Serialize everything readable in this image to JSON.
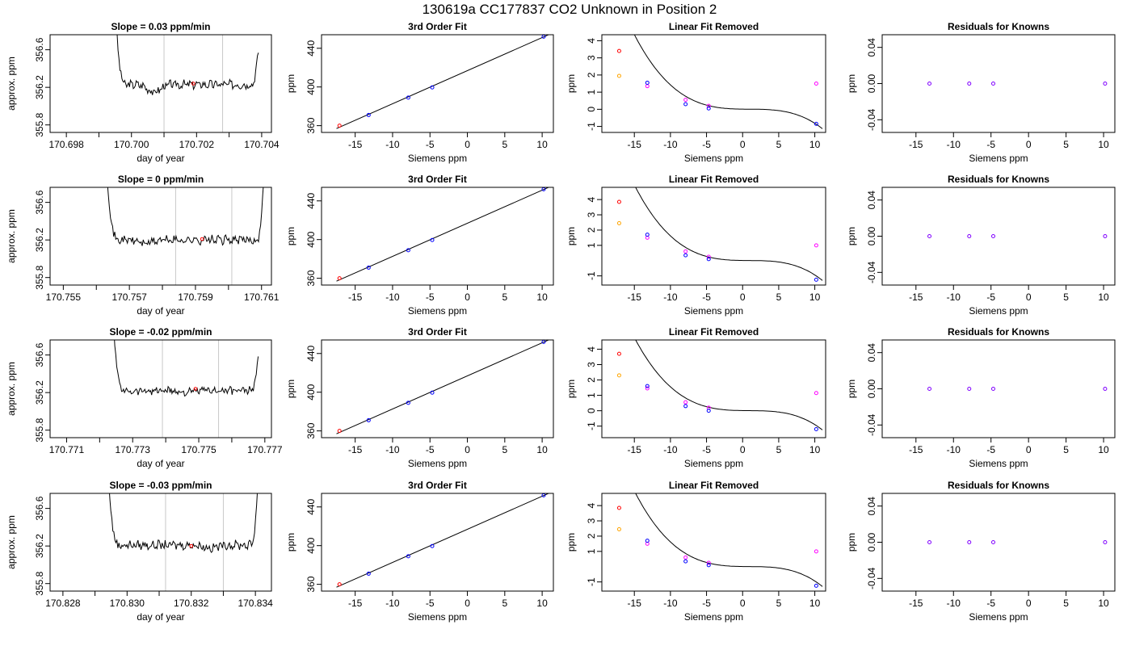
{
  "figure": {
    "title": "130619a     CC177837    CO2 Unknown in Position  2",
    "colors": {
      "trace": "#000000",
      "marker_line": "#c8c8c8",
      "unknown": "#ff0000",
      "standard": "#0000ff",
      "residual": "#ff00ff",
      "linear_unknown": "#ffa500",
      "residual_known": "#8000ff"
    }
  },
  "chart_data": [
    {
      "type": "line",
      "row": 0,
      "col": 0,
      "title": "Slope =  0.03  ppm/min",
      "xlabel": "day of year",
      "ylabel": "approx. ppm",
      "xlim": [
        170.6975,
        170.7043
      ],
      "ylim": [
        355.72,
        356.76
      ],
      "xticks": [
        170.698,
        170.7,
        170.702,
        170.704
      ],
      "xtick_labels": [
        "170.698",
        "170.700",
        "170.702",
        "170.704"
      ],
      "xminor": [
        170.699,
        170.701,
        170.703
      ],
      "yticks": [
        355.8,
        356.2,
        356.6
      ],
      "ytick_labels": [
        "355.8",
        "356.2",
        "356.6"
      ],
      "vlines": [
        170.701,
        170.7028
      ],
      "trace": {
        "x0": 170.6995,
        "x1": 170.7039,
        "noise": 0.04,
        "start": 357.0,
        "end": 356.58,
        "base": 356.23,
        "dip": {
          "at": 170.7007,
          "depth": -0.08
        }
      },
      "unknown_point": [
        170.7019,
        356.24
      ]
    },
    {
      "type": "scatter",
      "row": 0,
      "col": 1,
      "title": "3rd Order Fit",
      "xlabel": "Siemens ppm",
      "ylabel": "ppm",
      "xlim": [
        -19.5,
        11.5
      ],
      "ylim": [
        353,
        454
      ],
      "xticks": [
        -15,
        -10,
        -5,
        0,
        5,
        10
      ],
      "xtick_labels": [
        "-15",
        "-10",
        "-5",
        "0",
        "5",
        "10"
      ],
      "yticks": [
        360,
        400,
        440
      ],
      "ytick_labels": [
        "360",
        "400",
        "440"
      ],
      "standards": [
        [
          -13.2,
          371
        ],
        [
          -7.9,
          389
        ],
        [
          -4.7,
          399.5
        ],
        [
          10.2,
          452
        ]
      ],
      "unknown": [
        -17.1,
        360
      ],
      "fit_range": [
        -17.5,
        11
      ]
    },
    {
      "type": "scatter",
      "row": 0,
      "col": 2,
      "title": "Linear Fit Removed",
      "xlabel": "Siemens ppm",
      "ylabel": "ppm",
      "xlim": [
        -19.5,
        11.5
      ],
      "ylim": [
        -1.35,
        4.35
      ],
      "xticks": [
        -15,
        -10,
        -5,
        0,
        5,
        10
      ],
      "xtick_labels": [
        "-15",
        "-10",
        "-5",
        "0",
        "5",
        "10"
      ],
      "yticks": [
        -1,
        0,
        1,
        2,
        3,
        4
      ],
      "ytick_labels": [
        "-1",
        "0",
        "1",
        "2",
        "3",
        "4"
      ],
      "standards": [
        [
          -13.2,
          1.55
        ],
        [
          -7.9,
          0.3
        ],
        [
          -4.7,
          0.05
        ],
        [
          10.2,
          -0.85
        ]
      ],
      "residuals": [
        [
          -13.2,
          1.35
        ],
        [
          -7.9,
          0.55
        ],
        [
          -4.7,
          0.2
        ],
        [
          10.2,
          1.5
        ]
      ],
      "unknown": [
        -17.1,
        3.4
      ],
      "linear_unknown": [
        -17.1,
        1.95
      ],
      "curve": {
        "a": -0.00107,
        "b": 0.00294,
        "c": -0.0051,
        "d": 0.01
      }
    },
    {
      "type": "scatter",
      "row": 0,
      "col": 3,
      "title": "Residuals for Knowns",
      "xlabel": "Siemens ppm",
      "ylabel": "ppm",
      "xlim": [
        -19.5,
        11.5
      ],
      "ylim": [
        -0.054,
        0.054
      ],
      "xticks": [
        -15,
        -10,
        -5,
        0,
        5,
        10
      ],
      "xtick_labels": [
        "-15",
        "-10",
        "-5",
        "0",
        "5",
        "10"
      ],
      "yticks": [
        -0.04,
        0,
        0.04
      ],
      "ytick_labels": [
        "-0.04",
        "0.00",
        "0.04"
      ],
      "points": [
        [
          -13.2,
          0
        ],
        [
          -7.9,
          0
        ],
        [
          -4.7,
          0
        ],
        [
          10.2,
          0
        ]
      ]
    },
    {
      "type": "line",
      "row": 1,
      "col": 0,
      "title": "Slope =  0  ppm/min",
      "xlabel": "day of year",
      "ylabel": "approx. ppm",
      "xlim": [
        170.7546,
        170.7613
      ],
      "ylim": [
        355.72,
        356.76
      ],
      "xticks": [
        170.755,
        170.757,
        170.759,
        170.761
      ],
      "xtick_labels": [
        "170.755",
        "170.757",
        "170.759",
        "170.761"
      ],
      "xminor": [
        170.756,
        170.758,
        170.76
      ],
      "yticks": [
        355.8,
        356.2,
        356.6
      ],
      "ytick_labels": [
        "355.8",
        "356.2",
        "356.6"
      ],
      "vlines": [
        170.7584,
        170.7601
      ],
      "trace": {
        "x0": 170.7563,
        "x1": 170.7611,
        "noise": 0.04,
        "start": 357.0,
        "end": 357.0,
        "base": 356.2,
        "dip": {
          "at": 170.7575,
          "depth": -0.03
        }
      },
      "unknown_point": [
        170.7592,
        356.21
      ]
    },
    {
      "type": "scatter",
      "row": 1,
      "col": 1,
      "title": "3rd Order Fit",
      "xlabel": "Siemens ppm",
      "ylabel": "ppm",
      "xlim": [
        -19.5,
        11.5
      ],
      "ylim": [
        353,
        454
      ],
      "xticks": [
        -15,
        -10,
        -5,
        0,
        5,
        10
      ],
      "xtick_labels": [
        "-15",
        "-10",
        "-5",
        "0",
        "5",
        "10"
      ],
      "yticks": [
        360,
        400,
        440
      ],
      "ytick_labels": [
        "360",
        "400",
        "440"
      ],
      "standards": [
        [
          -13.2,
          371
        ],
        [
          -7.9,
          389
        ],
        [
          -4.7,
          399.5
        ],
        [
          10.2,
          452
        ]
      ],
      "unknown": [
        -17.1,
        360
      ],
      "fit_range": [
        -17.5,
        11
      ]
    },
    {
      "type": "scatter",
      "row": 1,
      "col": 2,
      "title": "Linear Fit Removed",
      "xlabel": "Siemens ppm",
      "ylabel": "ppm",
      "xlim": [
        -19.5,
        11.5
      ],
      "ylim": [
        -1.6,
        4.8
      ],
      "xticks": [
        -15,
        -10,
        -5,
        0,
        5,
        10
      ],
      "xtick_labels": [
        "-15",
        "-10",
        "-5",
        "0",
        "5",
        "10"
      ],
      "yticks": [
        -1,
        1,
        2,
        3,
        4
      ],
      "ytick_labels": [
        "-1",
        "1",
        "2",
        "3",
        "4"
      ],
      "standards": [
        [
          -13.2,
          1.7
        ],
        [
          -7.9,
          0.35
        ],
        [
          -4.7,
          0.1
        ],
        [
          10.2,
          -1.25
        ]
      ],
      "residuals": [
        [
          -13.2,
          1.5
        ],
        [
          -7.9,
          0.6
        ],
        [
          -4.7,
          0.25
        ],
        [
          10.2,
          1.0
        ]
      ],
      "unknown": [
        -17.1,
        3.85
      ],
      "linear_unknown": [
        -17.1,
        2.45
      ],
      "curve": {
        "a": -0.00122,
        "b": 0.00331,
        "c": -0.0059,
        "d": 0.01
      }
    },
    {
      "type": "scatter",
      "row": 1,
      "col": 3,
      "title": "Residuals for Knowns",
      "xlabel": "Siemens ppm",
      "ylabel": "ppm",
      "xlim": [
        -19.5,
        11.5
      ],
      "ylim": [
        -0.054,
        0.054
      ],
      "xticks": [
        -15,
        -10,
        -5,
        0,
        5,
        10
      ],
      "xtick_labels": [
        "-15",
        "-10",
        "-5",
        "0",
        "5",
        "10"
      ],
      "yticks": [
        -0.04,
        0,
        0.04
      ],
      "ytick_labels": [
        "-0.04",
        "0.00",
        "0.04"
      ],
      "points": [
        [
          -13.2,
          0
        ],
        [
          -7.9,
          0
        ],
        [
          -4.7,
          0
        ],
        [
          10.2,
          0
        ]
      ]
    },
    {
      "type": "line",
      "row": 2,
      "col": 0,
      "title": "Slope =  -0.02  ppm/min",
      "xlabel": "day of year",
      "ylabel": "approx. ppm",
      "xlim": [
        170.7705,
        170.7772
      ],
      "ylim": [
        355.72,
        356.76
      ],
      "xticks": [
        170.771,
        170.773,
        170.775,
        170.777
      ],
      "xtick_labels": [
        "170.771",
        "170.773",
        "170.775",
        "170.777"
      ],
      "xminor": [
        170.772,
        170.774,
        170.776
      ],
      "yticks": [
        355.8,
        356.2,
        356.6
      ],
      "ytick_labels": [
        "355.8",
        "356.2",
        "356.6"
      ],
      "vlines": [
        170.7739,
        170.7756
      ],
      "trace": {
        "x0": 170.7724,
        "x1": 170.7768,
        "noise": 0.035,
        "start": 357.0,
        "end": 356.57,
        "base": 356.22,
        "dip": {
          "at": 170.7746,
          "depth": -0.02
        }
      },
      "unknown_point": [
        170.7749,
        356.24
      ]
    },
    {
      "type": "scatter",
      "row": 2,
      "col": 1,
      "title": "3rd Order Fit",
      "xlabel": "Siemens ppm",
      "ylabel": "ppm",
      "xlim": [
        -19.5,
        11.5
      ],
      "ylim": [
        353,
        454
      ],
      "xticks": [
        -15,
        -10,
        -5,
        0,
        5,
        10
      ],
      "xtick_labels": [
        "-15",
        "-10",
        "-5",
        "0",
        "5",
        "10"
      ],
      "yticks": [
        360,
        400,
        440
      ],
      "ytick_labels": [
        "360",
        "400",
        "440"
      ],
      "standards": [
        [
          -13.2,
          371
        ],
        [
          -7.9,
          389
        ],
        [
          -4.7,
          399.5
        ],
        [
          10.2,
          452
        ]
      ],
      "unknown": [
        -17.1,
        360
      ],
      "fit_range": [
        -17.5,
        11
      ]
    },
    {
      "type": "scatter",
      "row": 2,
      "col": 2,
      "title": "Linear Fit Removed",
      "xlabel": "Siemens ppm",
      "ylabel": "ppm",
      "xlim": [
        -19.5,
        11.5
      ],
      "ylim": [
        -1.75,
        4.6
      ],
      "xticks": [
        -15,
        -10,
        -5,
        0,
        5,
        10
      ],
      "xtick_labels": [
        "-15",
        "-10",
        "-5",
        "0",
        "5",
        "10"
      ],
      "yticks": [
        -1,
        0,
        1,
        2,
        3,
        4
      ],
      "ytick_labels": [
        "-1",
        "0",
        "1",
        "2",
        "3",
        "4"
      ],
      "standards": [
        [
          -13.2,
          1.6
        ],
        [
          -7.9,
          0.3
        ],
        [
          -4.7,
          0.0
        ],
        [
          10.2,
          -1.2
        ]
      ],
      "residuals": [
        [
          -13.2,
          1.45
        ],
        [
          -7.9,
          0.55
        ],
        [
          -4.7,
          0.2
        ],
        [
          10.2,
          1.15
        ]
      ],
      "unknown": [
        -17.1,
        3.7
      ],
      "linear_unknown": [
        -17.1,
        2.3
      ],
      "curve": {
        "a": -0.00117,
        "b": 0.00317,
        "c": -0.0057,
        "d": 0.01
      }
    },
    {
      "type": "scatter",
      "row": 2,
      "col": 3,
      "title": "Residuals for Knowns",
      "xlabel": "Siemens ppm",
      "ylabel": "ppm",
      "xlim": [
        -19.5,
        11.5
      ],
      "ylim": [
        -0.054,
        0.054
      ],
      "xticks": [
        -15,
        -10,
        -5,
        0,
        5,
        10
      ],
      "xtick_labels": [
        "-15",
        "-10",
        "-5",
        "0",
        "5",
        "10"
      ],
      "yticks": [
        -0.04,
        0,
        0.04
      ],
      "ytick_labels": [
        "-0.04",
        "0.00",
        "0.04"
      ],
      "points": [
        [
          -13.2,
          0
        ],
        [
          -7.9,
          0
        ],
        [
          -4.7,
          0
        ],
        [
          10.2,
          0
        ]
      ]
    },
    {
      "type": "line",
      "row": 3,
      "col": 0,
      "title": "Slope =  -0.03  ppm/min",
      "xlabel": "day of year",
      "ylabel": "approx. ppm",
      "xlim": [
        170.8276,
        170.8345
      ],
      "ylim": [
        355.72,
        356.76
      ],
      "xticks": [
        170.828,
        170.83,
        170.832,
        170.834
      ],
      "xtick_labels": [
        "170.828",
        "170.830",
        "170.832",
        "170.834"
      ],
      "xminor": [
        170.829,
        170.831,
        170.833
      ],
      "yticks": [
        355.8,
        356.2,
        356.6
      ],
      "ytick_labels": [
        "355.8",
        "356.2",
        "356.6"
      ],
      "vlines": [
        170.8312,
        170.833
      ],
      "trace": {
        "x0": 170.8294,
        "x1": 170.8341,
        "noise": 0.04,
        "start": 357.0,
        "end": 357.0,
        "base": 356.21,
        "dip": {
          "at": 170.8326,
          "depth": -0.03
        }
      },
      "unknown_point": [
        170.832,
        356.2
      ]
    },
    {
      "type": "scatter",
      "row": 3,
      "col": 1,
      "title": "3rd Order Fit",
      "xlabel": "Siemens ppm",
      "ylabel": "ppm",
      "xlim": [
        -19.5,
        11.5
      ],
      "ylim": [
        353,
        454
      ],
      "xticks": [
        -15,
        -10,
        -5,
        0,
        5,
        10
      ],
      "xtick_labels": [
        "-15",
        "-10",
        "-5",
        "0",
        "5",
        "10"
      ],
      "yticks": [
        360,
        400,
        440
      ],
      "ytick_labels": [
        "360",
        "400",
        "440"
      ],
      "standards": [
        [
          -13.2,
          371
        ],
        [
          -7.9,
          389
        ],
        [
          -4.7,
          399.5
        ],
        [
          10.2,
          452
        ]
      ],
      "unknown": [
        -17.1,
        360
      ],
      "fit_range": [
        -17.5,
        11
      ]
    },
    {
      "type": "scatter",
      "row": 3,
      "col": 2,
      "title": "Linear Fit Removed",
      "xlabel": "Siemens ppm",
      "ylabel": "ppm",
      "xlim": [
        -19.5,
        11.5
      ],
      "ylim": [
        -1.6,
        4.8
      ],
      "xticks": [
        -15,
        -10,
        -5,
        0,
        5,
        10
      ],
      "xtick_labels": [
        "-15",
        "-10",
        "-5",
        "0",
        "5",
        "10"
      ],
      "yticks": [
        -1,
        1,
        2,
        3,
        4
      ],
      "ytick_labels": [
        "-1",
        "1",
        "2",
        "3",
        "4"
      ],
      "standards": [
        [
          -13.2,
          1.7
        ],
        [
          -7.9,
          0.35
        ],
        [
          -4.7,
          0.1
        ],
        [
          10.2,
          -1.25
        ]
      ],
      "residuals": [
        [
          -13.2,
          1.5
        ],
        [
          -7.9,
          0.6
        ],
        [
          -4.7,
          0.25
        ],
        [
          10.2,
          1.0
        ]
      ],
      "unknown": [
        -17.1,
        3.85
      ],
      "linear_unknown": [
        -17.1,
        2.45
      ],
      "curve": {
        "a": -0.00122,
        "b": 0.00331,
        "c": -0.0059,
        "d": 0.01
      }
    },
    {
      "type": "scatter",
      "row": 3,
      "col": 3,
      "title": "Residuals for Knowns",
      "xlabel": "Siemens ppm",
      "ylabel": "ppm",
      "xlim": [
        -19.5,
        11.5
      ],
      "ylim": [
        -0.054,
        0.054
      ],
      "xticks": [
        -15,
        -10,
        -5,
        0,
        5,
        10
      ],
      "xtick_labels": [
        "-15",
        "-10",
        "-5",
        "0",
        "5",
        "10"
      ],
      "yticks": [
        -0.04,
        0,
        0.04
      ],
      "ytick_labels": [
        "-0.04",
        "0.00",
        "0.04"
      ],
      "points": [
        [
          -13.2,
          0
        ],
        [
          -7.9,
          0
        ],
        [
          -4.7,
          0
        ],
        [
          10.2,
          0
        ]
      ]
    }
  ]
}
